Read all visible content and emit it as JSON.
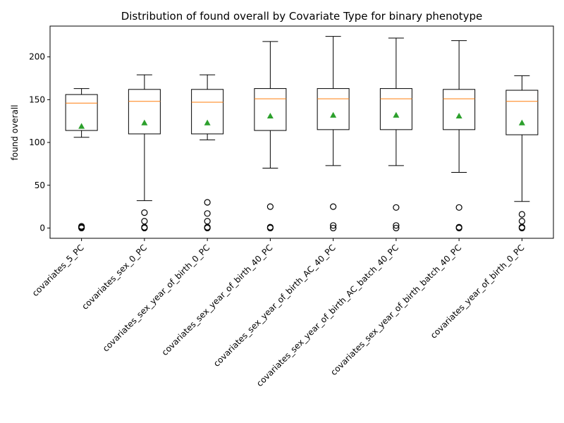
{
  "chart_data": {
    "type": "box",
    "title": "Distribution of found overall by Covariate Type for binary phenotype",
    "xlabel": "",
    "ylabel": "found overall",
    "ylim": [
      -12,
      236
    ],
    "yticks": [
      0,
      50,
      100,
      150,
      200
    ],
    "grid": false,
    "legend": "none",
    "colors": {
      "box": "#000000",
      "median": "#ff7f0e",
      "mean": "#2ca02c",
      "outlier": "#000000"
    },
    "categories": [
      "covariates_5_PC",
      "covariates_sex_0_PC",
      "covariates_sex_year_of_birth_0_PC",
      "covariates_sex_year_of_birth_40_PC",
      "covariates_sex_year_of_birth_AC_40_PC",
      "covariates_sex_year_of_birth_AC_batch_40_PC",
      "covariates_sex_year_of_birth_batch_40_PC",
      "covariates_year_of_birth_0_PC"
    ],
    "boxes": [
      {
        "whisker_low": 106,
        "q1": 114,
        "median": 146,
        "q3": 156,
        "whisker_high": 163,
        "mean": 119,
        "outliers": [
          0,
          1,
          2
        ]
      },
      {
        "whisker_low": 32,
        "q1": 110,
        "median": 148,
        "q3": 162,
        "whisker_high": 179,
        "mean": 123,
        "outliers": [
          0,
          1,
          8,
          18
        ]
      },
      {
        "whisker_low": 103,
        "q1": 110,
        "median": 147,
        "q3": 162,
        "whisker_high": 179,
        "mean": 123,
        "outliers": [
          0,
          1,
          8,
          17,
          30
        ]
      },
      {
        "whisker_low": 70,
        "q1": 114,
        "median": 151,
        "q3": 163,
        "whisker_high": 218,
        "mean": 131,
        "outliers": [
          0,
          1,
          25
        ]
      },
      {
        "whisker_low": 73,
        "q1": 115,
        "median": 151,
        "q3": 163,
        "whisker_high": 224,
        "mean": 132,
        "outliers": [
          0,
          3,
          25
        ]
      },
      {
        "whisker_low": 73,
        "q1": 115,
        "median": 151,
        "q3": 163,
        "whisker_high": 222,
        "mean": 132,
        "outliers": [
          0,
          3,
          24
        ]
      },
      {
        "whisker_low": 65,
        "q1": 115,
        "median": 151,
        "q3": 162,
        "whisker_high": 219,
        "mean": 131,
        "outliers": [
          0,
          1,
          24
        ]
      },
      {
        "whisker_low": 31,
        "q1": 109,
        "median": 148,
        "q3": 161,
        "whisker_high": 178,
        "mean": 123,
        "outliers": [
          0,
          1,
          8,
          16
        ]
      }
    ]
  }
}
